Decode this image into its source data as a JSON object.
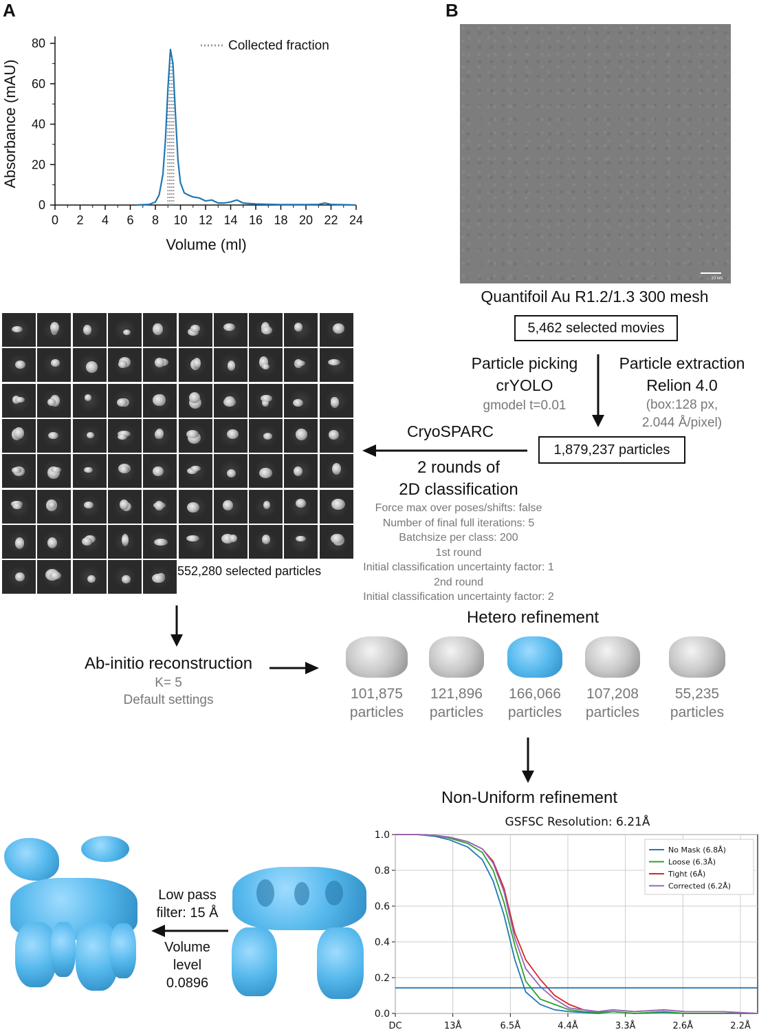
{
  "panel_labels": {
    "a": "A",
    "b": "B"
  },
  "chart_data": [
    {
      "type": "line",
      "xlabel": "Volume (ml)",
      "ylabel": "Absorbance (mAU)",
      "xlim": [
        0,
        24
      ],
      "ylim": [
        0,
        80
      ],
      "xticks": [
        "0",
        "2",
        "4",
        "6",
        "8",
        "10",
        "12",
        "14",
        "16",
        "18",
        "20",
        "22",
        "24"
      ],
      "yticks": [
        "0",
        "20",
        "40",
        "60",
        "80"
      ],
      "legend": "Collected fraction",
      "legend_placement": "top-right",
      "collected_fraction_x": [
        9.0,
        9.45
      ],
      "x": [
        6.5,
        7.5,
        8.0,
        8.3,
        8.6,
        8.8,
        9.0,
        9.2,
        9.4,
        9.6,
        9.8,
        10.0,
        10.3,
        10.6,
        11.0,
        11.5,
        12.0,
        12.5,
        13.0,
        13.5,
        14.0,
        14.5,
        15.0,
        16.0,
        18.0,
        20.0,
        21.0,
        21.5,
        22.0,
        24.0
      ],
      "values": [
        0,
        0.3,
        1.5,
        5,
        15,
        32,
        58,
        77,
        70,
        45,
        22,
        11,
        6,
        5,
        4,
        3.5,
        2,
        2.5,
        1,
        1,
        1.5,
        2.5,
        1,
        0.5,
        0.2,
        0.2,
        0.3,
        1,
        0.3,
        0
      ],
      "color": "#1f77b4"
    },
    {
      "type": "line",
      "title": "GSFSC Resolution: 6.21Å",
      "ylim": [
        0.0,
        1.0
      ],
      "yticks": [
        "0.0",
        "0.2",
        "0.4",
        "0.6",
        "0.8",
        "1.0"
      ],
      "xticks": [
        "DC",
        "13Å",
        "6.5Å",
        "4.4Å",
        "3.3Å",
        "2.6Å",
        "2.2Å"
      ],
      "x": [
        0.0,
        0.03,
        0.055,
        0.075,
        0.1,
        0.12,
        0.135,
        0.15,
        0.165,
        0.18,
        0.2,
        0.22,
        0.24,
        0.26,
        0.28,
        0.3,
        0.33,
        0.37,
        0.4,
        0.45,
        0.5
      ],
      "threshold": 0.143,
      "grid": true,
      "legend_placement": "top-right",
      "series": [
        {
          "name": "No Mask (6.8Å)",
          "color": "#1f77b4",
          "values": [
            1.0,
            1.0,
            0.99,
            0.97,
            0.93,
            0.86,
            0.74,
            0.55,
            0.3,
            0.12,
            0.05,
            0.02,
            0.01,
            0.005,
            0.0,
            0.01,
            0.0,
            0.005,
            0.0,
            0.0,
            0.0
          ]
        },
        {
          "name": "Loose (6.3Å)",
          "color": "#2ca02c",
          "values": [
            1.0,
            1.0,
            0.995,
            0.98,
            0.95,
            0.9,
            0.8,
            0.62,
            0.38,
            0.18,
            0.08,
            0.05,
            0.02,
            0.01,
            0.005,
            0.01,
            0.0,
            0.01,
            0.0,
            0.0,
            0.0
          ]
        },
        {
          "name": "Tight (6Å)",
          "color": "#d62728",
          "values": [
            1.0,
            1.0,
            0.995,
            0.985,
            0.96,
            0.92,
            0.85,
            0.7,
            0.45,
            0.3,
            0.19,
            0.1,
            0.05,
            0.02,
            0.01,
            0.02,
            0.01,
            0.02,
            0.01,
            0.01,
            0.0
          ]
        },
        {
          "name": "Corrected (6.2Å)",
          "color": "#9467bd",
          "values": [
            1.0,
            1.0,
            0.995,
            0.985,
            0.96,
            0.92,
            0.84,
            0.68,
            0.42,
            0.25,
            0.15,
            0.08,
            0.03,
            0.02,
            0.01,
            0.02,
            0.01,
            0.02,
            0.01,
            0.01,
            0.0
          ]
        }
      ]
    }
  ],
  "grid_text": "Quantifoil Au R1.2/1.3 300 mesh",
  "scalebar": "10 nm",
  "movies_box": "5,462 selected movies",
  "picking": {
    "title_1": "Particle picking",
    "title_2": "crYOLO",
    "param": "gmodel t=0.01"
  },
  "extraction": {
    "title_1": "Particle extraction",
    "title_2": "Relion 4.0",
    "param_1": "(box:128 px,",
    "param_2": "2.044 Å/pixel)"
  },
  "particles_box": "1,879,237 particles",
  "cryosparc": "CryoSPARC",
  "classification": {
    "title_1": "2 rounds of",
    "title_2": "2D classification",
    "params": [
      "Force max over poses/shifts: false",
      "Number of final full iterations: 5",
      "Batchsize per class: 200",
      "1st round",
      "Initial classification uncertainty factor: 1",
      "2nd round",
      "Initial classification uncertainty factor: 2"
    ]
  },
  "selected_particles": "552,280 selected particles",
  "abinitio": {
    "title": "Ab-initio reconstruction",
    "k": "K= 5",
    "settings": "Default settings"
  },
  "hetero": {
    "title": "Hetero refinement",
    "classes": [
      {
        "count": "101,875",
        "unit": "particles"
      },
      {
        "count": "121,896",
        "unit": "particles"
      },
      {
        "count": "166,066",
        "unit": "particles"
      },
      {
        "count": "107,208",
        "unit": "particles"
      },
      {
        "count": "55,235",
        "unit": "particles"
      }
    ]
  },
  "nonuniform": "Non-Uniform refinement",
  "lowpass": {
    "line1": "Low pass",
    "line2": "filter: 15 Å",
    "line3": "Volume",
    "line4": "level",
    "line5": "0.0896"
  }
}
